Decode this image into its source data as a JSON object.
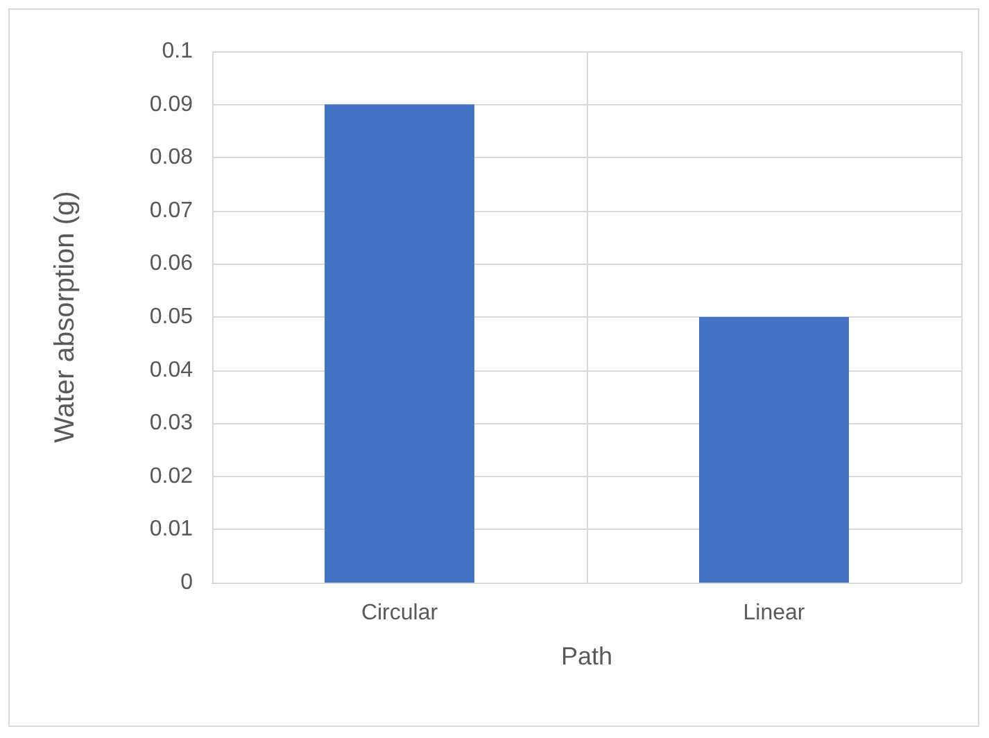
{
  "chart_data": {
    "type": "bar",
    "xlabel": "Path",
    "ylabel": "Water absorption (g)",
    "categories": [
      "Circular",
      "Linear"
    ],
    "values": [
      0.09,
      0.05
    ],
    "color": "#4472c4",
    "ylim": [
      0,
      0.1
    ],
    "yticks": [
      0,
      0.01,
      0.02,
      0.03,
      0.04,
      0.05,
      0.06,
      0.07,
      0.08,
      0.09,
      0.1
    ],
    "grid": true
  }
}
